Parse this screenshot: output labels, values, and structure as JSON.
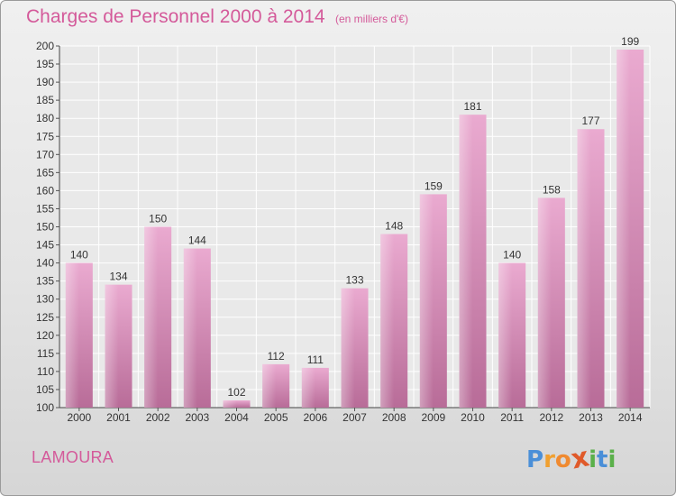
{
  "chart_data": {
    "type": "bar",
    "title": "Charges de Personnel 2000 à 2014",
    "subtitle": "(en milliers d'€)",
    "categories": [
      "2000",
      "2001",
      "2002",
      "2003",
      "2004",
      "2005",
      "2006",
      "2007",
      "2008",
      "2009",
      "2010",
      "2011",
      "2012",
      "2013",
      "2014"
    ],
    "values": [
      140,
      134,
      150,
      144,
      102,
      112,
      111,
      133,
      148,
      159,
      181,
      140,
      158,
      177,
      199
    ],
    "ylim": [
      100,
      200
    ],
    "ytick_step": 5,
    "grid": true,
    "bar_color": "#d690b8"
  },
  "footer": {
    "place": "LAMOURA",
    "logo_letters": [
      "P",
      "r",
      "o",
      "x",
      "i",
      "t",
      "i"
    ],
    "logo_colors": [
      "#4a8fd8",
      "#f0a030",
      "#f08a30",
      "#e05a2a",
      "#5ab04a",
      "#4a8fd8",
      "#5ab04a"
    ]
  }
}
